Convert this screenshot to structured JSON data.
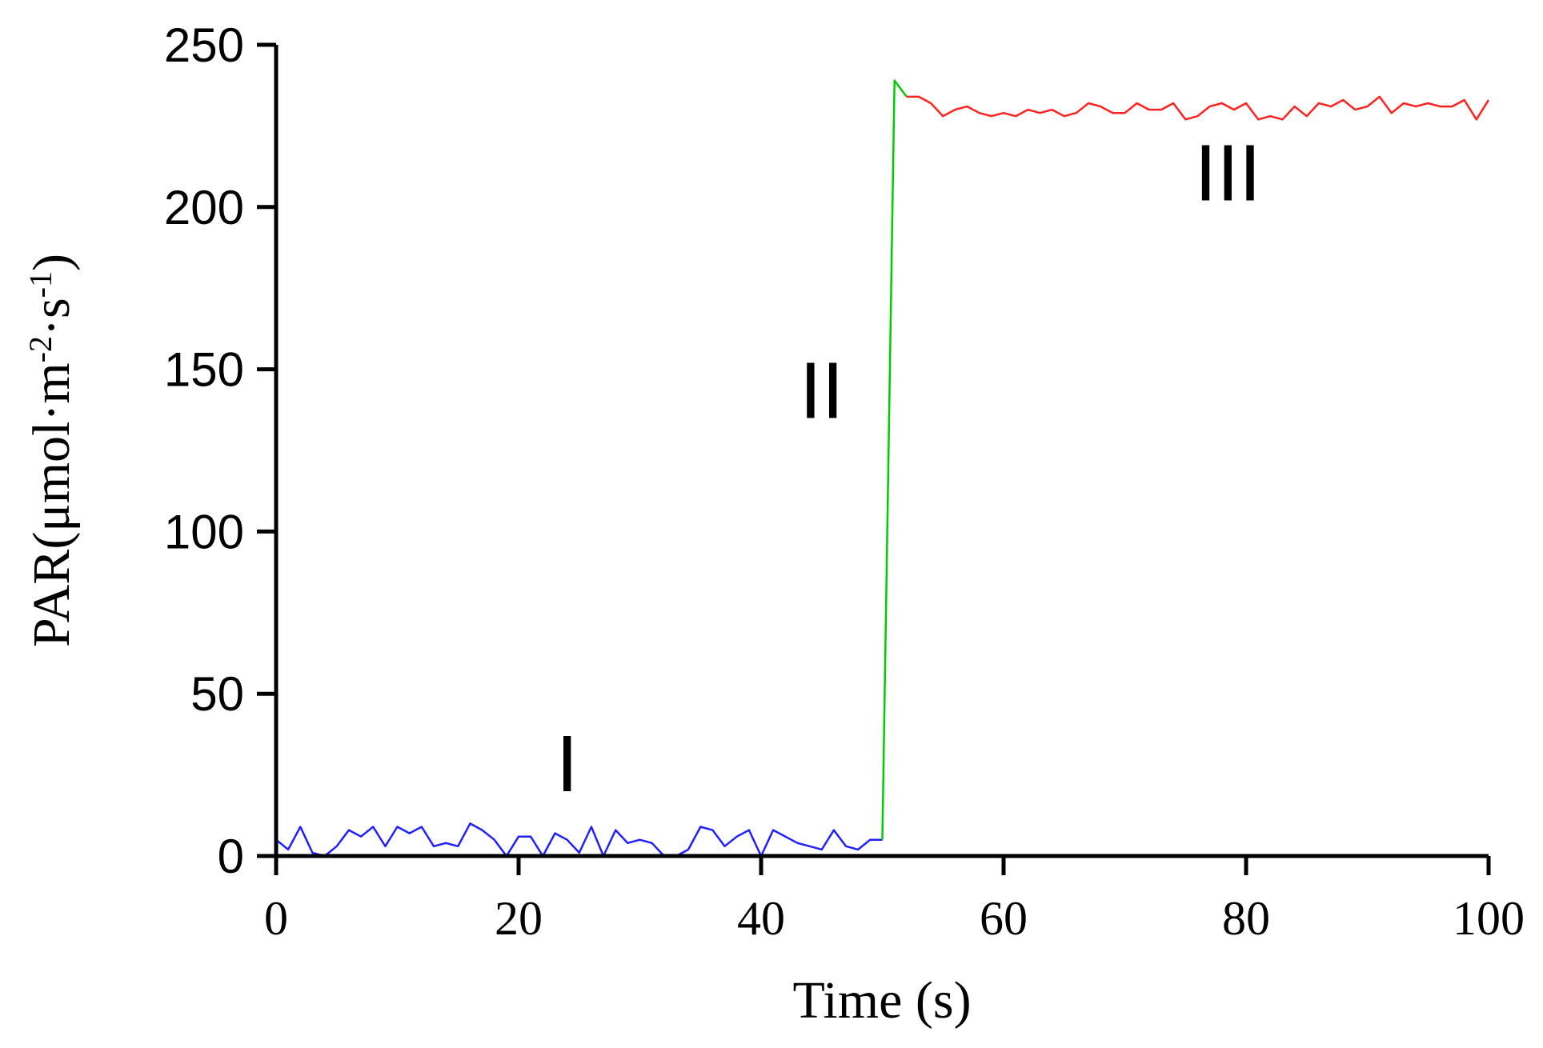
{
  "chart_data": {
    "type": "line",
    "title": "",
    "xlabel": "Time (s)",
    "ylabel_main": "PAR(μmol·m",
    "ylabel_sup1": "-2",
    "ylabel_mid": "·s",
    "ylabel_sup2": "-1",
    "ylabel_end": ")",
    "xlim": [
      0,
      100
    ],
    "ylim": [
      0,
      250
    ],
    "xticks": [
      0,
      20,
      40,
      60,
      80,
      100
    ],
    "yticks": [
      0,
      50,
      100,
      150,
      200,
      250
    ],
    "grid": false,
    "annotations": [
      {
        "text": "I",
        "x": 24,
        "y": 20
      },
      {
        "text": "II",
        "x": 45,
        "y": 135
      },
      {
        "text": "III",
        "x": 78.5,
        "y": 202
      }
    ],
    "series": [
      {
        "color": "#2020ff",
        "x": [
          0,
          1,
          2,
          3,
          4,
          5,
          6,
          7,
          8,
          9,
          10,
          11,
          12,
          13,
          14,
          15,
          16,
          17,
          18,
          19,
          20,
          21,
          22,
          23,
          24,
          25,
          26,
          27,
          28,
          29,
          30,
          31,
          32,
          33,
          34,
          35,
          36,
          37,
          38,
          39,
          40,
          41,
          42,
          43,
          44,
          45,
          46,
          47,
          48,
          49,
          50
        ],
        "y": [
          5,
          2,
          9,
          1,
          0,
          3,
          8,
          6,
          9,
          3,
          9,
          7,
          9,
          3,
          4,
          3,
          10,
          8,
          5,
          0,
          6,
          6,
          0,
          7,
          5,
          1,
          9,
          0,
          8,
          4,
          5,
          4,
          0,
          0,
          2,
          9,
          8,
          3,
          6,
          8,
          0,
          8,
          6,
          4,
          3,
          2,
          8,
          3,
          2,
          5,
          5
        ]
      },
      {
        "color": "#00cc00",
        "x": [
          50,
          51,
          52
        ],
        "y": [
          5,
          239,
          234
        ]
      },
      {
        "color": "#ff2020",
        "x": [
          52,
          53,
          54,
          55,
          56,
          57,
          58,
          59,
          60,
          61,
          62,
          63,
          64,
          65,
          66,
          67,
          68,
          69,
          70,
          71,
          72,
          73,
          74,
          75,
          76,
          77,
          78,
          79,
          80,
          81,
          82,
          83,
          84,
          85,
          86,
          87,
          88,
          89,
          90,
          91,
          92,
          93,
          94,
          95,
          96,
          97,
          98,
          99,
          100
        ],
        "y": [
          234,
          234,
          232,
          228,
          230,
          231,
          229,
          228,
          229,
          228,
          230,
          229,
          230,
          228,
          229,
          232,
          231,
          229,
          229,
          232,
          230,
          230,
          232,
          227,
          228,
          231,
          232,
          230,
          232,
          227,
          228,
          227,
          231,
          228,
          232,
          231,
          233,
          230,
          231,
          234,
          229,
          232,
          231,
          232,
          231,
          231,
          233,
          227,
          233
        ]
      }
    ]
  }
}
